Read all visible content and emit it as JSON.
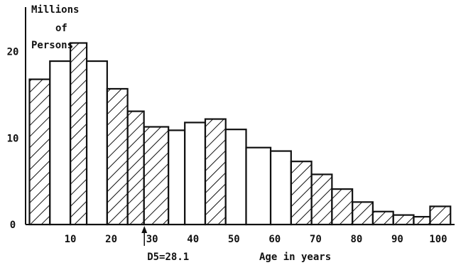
{
  "chart_data": {
    "type": "bar",
    "ylabel_line1": "Millions",
    "ylabel_line2": "of",
    "ylabel_line3": "Persons",
    "xlabel": "Age in years",
    "xlim": [
      -2,
      104
    ],
    "ylim": [
      0,
      24
    ],
    "x_tick_labels": [
      "10",
      "20",
      "30",
      "40",
      "50",
      "60",
      "70",
      "80",
      "90",
      "100"
    ],
    "x_tick_values": [
      10,
      20,
      30,
      40,
      50,
      60,
      70,
      80,
      90,
      100
    ],
    "y_tick_labels": [
      "0",
      "10",
      "20"
    ],
    "y_tick_values": [
      0,
      10,
      20
    ],
    "bars": [
      {
        "start": 0,
        "end": 5,
        "value": 16.8,
        "hatch": true
      },
      {
        "start": 5,
        "end": 10,
        "value": 18.9,
        "hatch": false
      },
      {
        "start": 10,
        "end": 14,
        "value": 21.0,
        "hatch": true
      },
      {
        "start": 14,
        "end": 19,
        "value": 18.9,
        "hatch": false
      },
      {
        "start": 19,
        "end": 24,
        "value": 15.7,
        "hatch": true
      },
      {
        "start": 24,
        "end": 28,
        "value": 13.1,
        "hatch": true
      },
      {
        "start": 28,
        "end": 34,
        "value": 11.3,
        "hatch": true
      },
      {
        "start": 34,
        "end": 38,
        "value": 10.9,
        "hatch": false
      },
      {
        "start": 38,
        "end": 43,
        "value": 11.8,
        "hatch": false
      },
      {
        "start": 43,
        "end": 48,
        "value": 12.2,
        "hatch": true
      },
      {
        "start": 48,
        "end": 53,
        "value": 11.0,
        "hatch": false
      },
      {
        "start": 53,
        "end": 59,
        "value": 8.9,
        "hatch": false
      },
      {
        "start": 59,
        "end": 64,
        "value": 8.5,
        "hatch": false
      },
      {
        "start": 64,
        "end": 69,
        "value": 7.3,
        "hatch": true
      },
      {
        "start": 69,
        "end": 74,
        "value": 5.8,
        "hatch": true
      },
      {
        "start": 74,
        "end": 79,
        "value": 4.1,
        "hatch": true
      },
      {
        "start": 79,
        "end": 84,
        "value": 2.6,
        "hatch": true
      },
      {
        "start": 84,
        "end": 89,
        "value": 1.5,
        "hatch": true
      },
      {
        "start": 89,
        "end": 94,
        "value": 1.1,
        "hatch": true
      },
      {
        "start": 94,
        "end": 98,
        "value": 0.9,
        "hatch": true
      },
      {
        "start": 98,
        "end": 103,
        "value": 2.1,
        "hatch": true
      }
    ],
    "median_label": "D5=28.1",
    "median_value": 28.1,
    "grid": false
  }
}
